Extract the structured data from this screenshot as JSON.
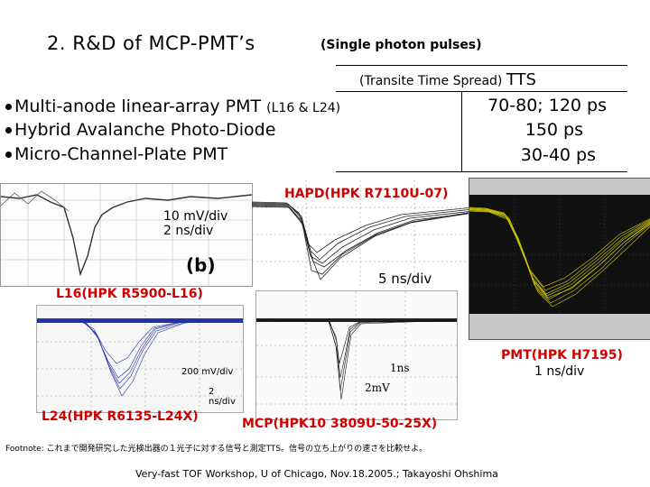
{
  "header": {
    "title": "2. R&D of MCP-PMT’s",
    "subtitle": "(Single photon pulses)",
    "tts_label": "(Transite Time Spread)",
    "tts_abbrev": "TTS"
  },
  "detectors": [
    {
      "name": "Multi-anode linear-array PMT",
      "detail": "(L16 & L24)",
      "tts": "70-80; 120 ps"
    },
    {
      "name": "Hybrid Avalanche Photo-Diode",
      "detail": "",
      "tts": "150 ps"
    },
    {
      "name": "Micro-Channel-Plate PMT",
      "detail": "",
      "tts": "30-40 ps"
    }
  ],
  "plots": {
    "hapd": {
      "label": "HAPD(HPK R7110U-07)",
      "scale_v": "10 mV/div",
      "scale_t": "2 ns/div",
      "panel_tag": "(b)",
      "scope_scale": "5 ns/div"
    },
    "l16": {
      "label": "L16(HPK R5900-L16)"
    },
    "l24": {
      "label": "L24(HPK R6135-L24X)",
      "scale_v": "200 mV/div",
      "scale_t": "2 ns/div"
    },
    "mcp": {
      "label": "MCP(HPK10 3809U-50-25X)",
      "scale_t": "1ns",
      "scale_v": "2mV"
    },
    "pmt": {
      "label": "PMT(HPK H7195)",
      "scale": "1 ns/div"
    }
  },
  "footnote": "Footnote:  これまで開発研究した光検出器の１光子に対する信号と測定TTS。信号の立ち上がりの速さを比較せよ。",
  "footer": "Very-fast TOF Workshop,  U of Chicago,    Nov.18.2005.;  Takayoshi Ohshima",
  "colors": {
    "label_red": "#d00000",
    "trace_yellow": "#e8e000",
    "trace_blue": "#2233aa",
    "scope_bg": "#101010"
  }
}
